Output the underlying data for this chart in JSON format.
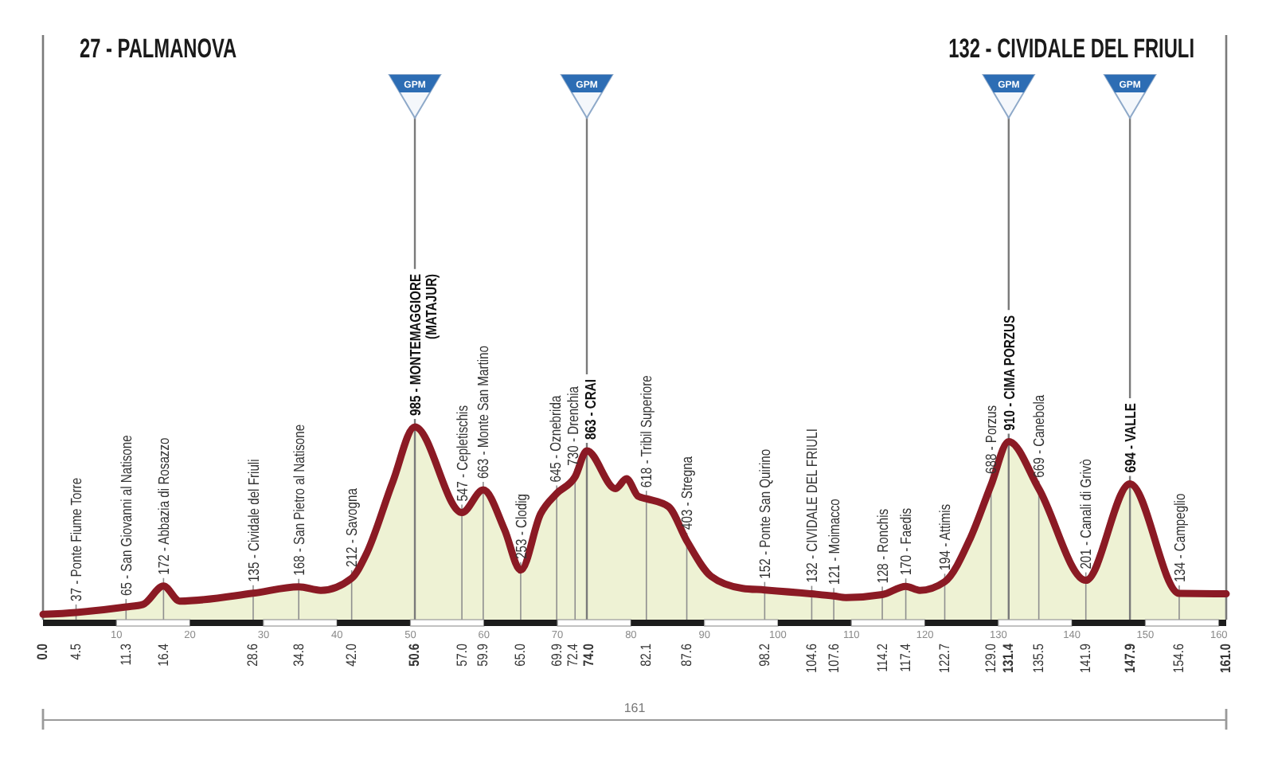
{
  "chart_data": {
    "type": "area",
    "color": "#8b1a24",
    "x": [
      0,
      4.5,
      11.3,
      13.6,
      16.4,
      18.6,
      28.6,
      34.8,
      37.8,
      42.0,
      44.0,
      47.6,
      50.6,
      57.0,
      59.9,
      62.8,
      65.0,
      67.7,
      69.9,
      72.4,
      74.0,
      77.9,
      79.4,
      81.0,
      82.1,
      85.1,
      87.6,
      90.9,
      95.2,
      98.2,
      104.6,
      107.6,
      109.3,
      114.2,
      117.4,
      119.3,
      122.7,
      126.2,
      129.0,
      131.4,
      135.5,
      141.9,
      147.9,
      154.6,
      161.0
    ],
    "values": [
      27,
      37,
      65,
      78,
      172,
      95,
      135,
      168,
      150,
      212,
      336,
      705,
      985,
      547,
      663,
      460,
      253,
      540,
      645,
      730,
      863,
      670,
      720,
      630,
      618,
      578,
      403,
      222,
      160,
      152,
      132,
      121,
      113,
      128,
      170,
      150,
      194,
      418,
      688,
      910,
      669,
      201,
      694,
      134,
      132
    ],
    "value_labels": [
      null,
      "37 - Ponte Fiume Torre",
      "65 - San Giovanni al Natisone",
      null,
      "172 - Abbazia di Rosazzo",
      null,
      "135 - Cividale del Friuli",
      "168 - San Pietro al Natisone",
      null,
      "212 - Savogna",
      null,
      null,
      "985 - MONTEMAGGIORE\n(MATAJUR)",
      "547 - Cepletischis",
      "663 - Monte San Martino",
      null,
      "253 - Clodig",
      null,
      "645 - Oznebrida",
      "730 - Drenchia",
      "863 - CRAI",
      null,
      null,
      null,
      "618 - Tribil Superiore",
      null,
      "403 - Stregna",
      null,
      null,
      "152 - Ponte San Quirino",
      "132 - CIVIDALE DEL FRIULI",
      "121 - Moimacco",
      null,
      "128 - Ronchis",
      "170 - Faedis",
      null,
      "194 - Attimis",
      null,
      "688 - Porzus",
      "910 - CIMA PORZUS",
      "669 - Canebola",
      "201 - Canali di Grivò",
      "694 - VALLE",
      "134 - Campeglio",
      null
    ],
    "xlim": [
      0,
      161
    ],
    "xticks": [
      {
        "value": 0,
        "label": "0.0"
      },
      4.5,
      11.3,
      16.4,
      28.6,
      34.8,
      {
        "value": 42,
        "label": "42.0"
      },
      50.6,
      {
        "value": 57,
        "label": "57.0"
      },
      59.9,
      {
        "value": 65,
        "label": "65.0"
      },
      69.9,
      72.4,
      {
        "value": 74,
        "label": "74.0"
      },
      82.1,
      87.6,
      98.2,
      104.6,
      107.6,
      114.2,
      117.4,
      122.7,
      {
        "value": 129,
        "label": "129.0"
      },
      131.4,
      135.5,
      141.9,
      147.9,
      154.6,
      {
        "value": 161,
        "label": "161.0"
      }
    ],
    "x2lim": [
      0,
      161
    ],
    "x2ticks": [
      10,
      20,
      30,
      40,
      50,
      60,
      70,
      80,
      90,
      100,
      110,
      120,
      130,
      140,
      150,
      160
    ],
    "tick_labels": "x",
    "grid": "x",
    "ref_lines": [
      {
        "axis": "x",
        "value": 50.6,
        "label": "GPM"
      },
      {
        "axis": "x",
        "value": 74.0,
        "label": "GPM"
      },
      {
        "axis": "x",
        "value": 131.4,
        "label": "GPM"
      },
      {
        "axis": "x",
        "value": 147.9,
        "label": "GPM"
      }
    ],
    "annotations": [
      "27 - PALMANOVA",
      "132 - CIVIDALE DEL FRIULI",
      "161"
    ]
  }
}
